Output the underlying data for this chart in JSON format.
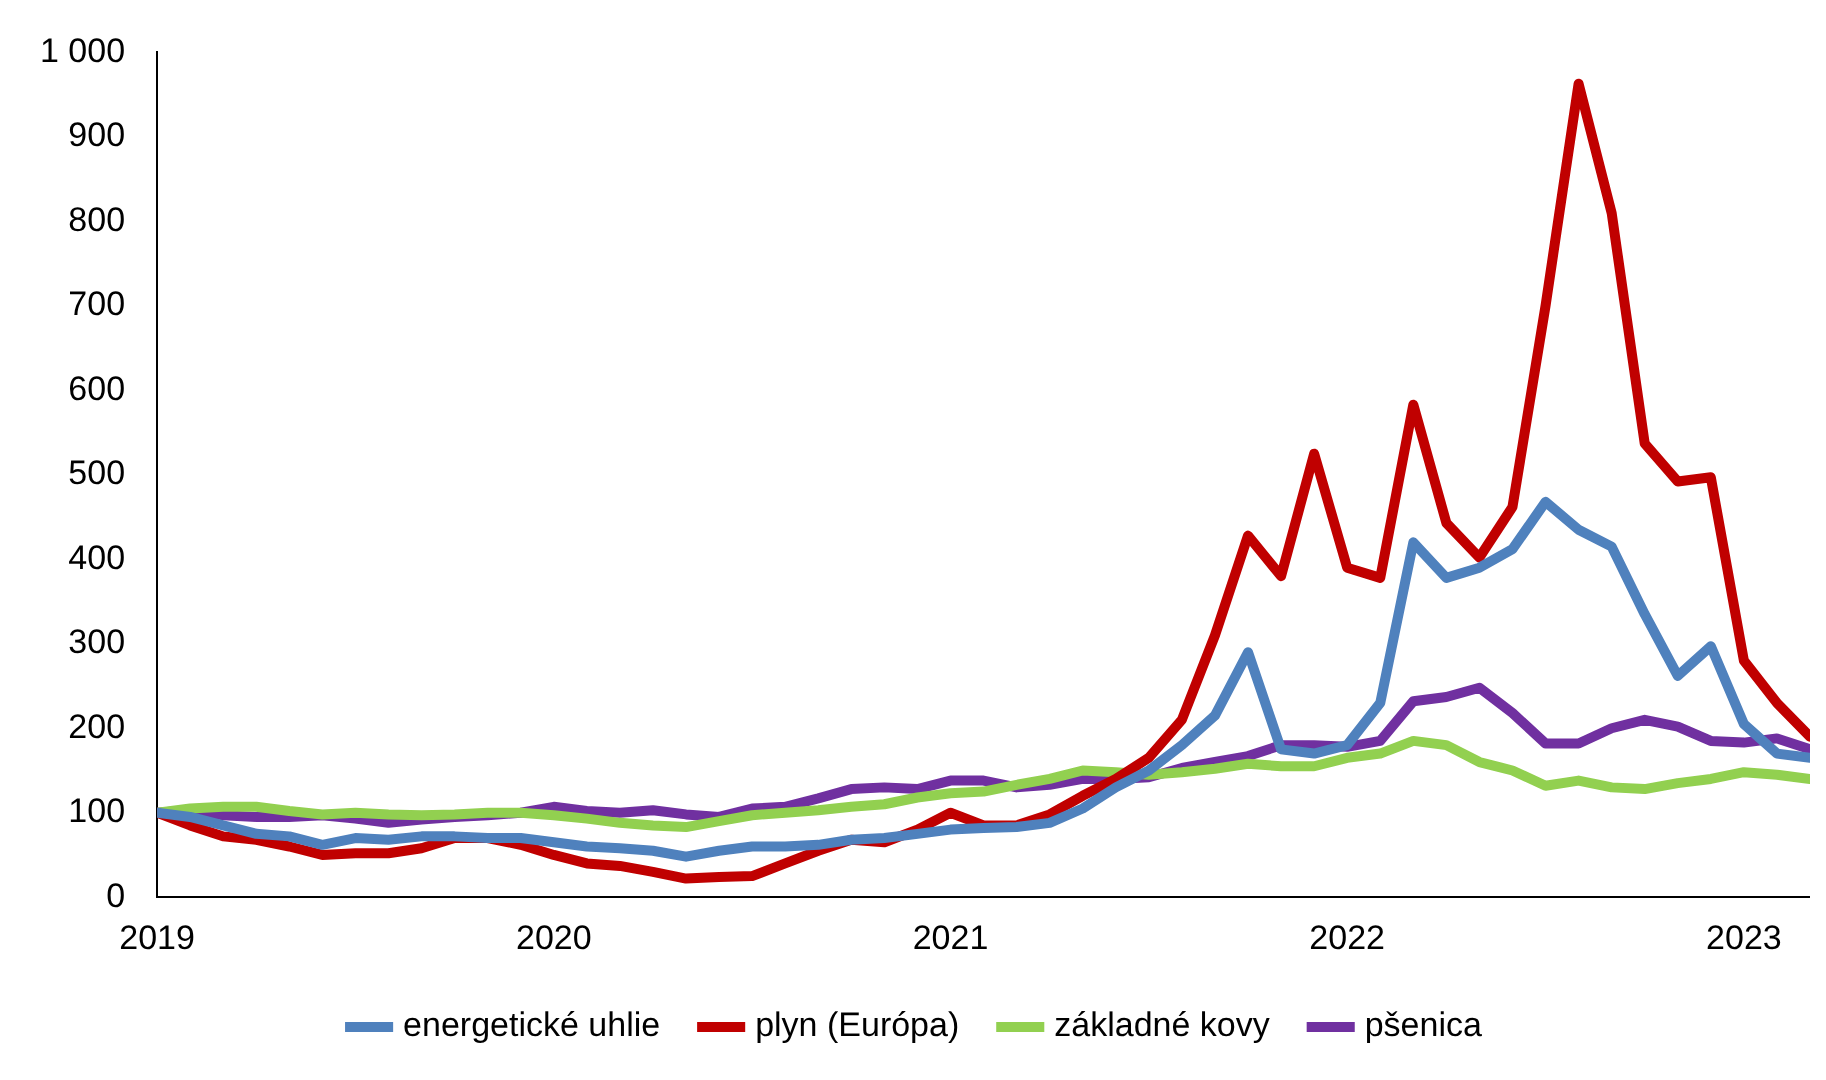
{
  "chart_data": {
    "type": "line",
    "x": [
      "2019-01",
      "2019-02",
      "2019-03",
      "2019-04",
      "2019-05",
      "2019-06",
      "2019-07",
      "2019-08",
      "2019-09",
      "2019-10",
      "2019-11",
      "2019-12",
      "2020-01",
      "2020-02",
      "2020-03",
      "2020-04",
      "2020-05",
      "2020-06",
      "2020-07",
      "2020-08",
      "2020-09",
      "2020-10",
      "2020-11",
      "2020-12",
      "2021-01",
      "2021-02",
      "2021-03",
      "2021-04",
      "2021-05",
      "2021-06",
      "2021-07",
      "2021-08",
      "2021-09",
      "2021-10",
      "2021-11",
      "2021-12",
      "2022-01",
      "2022-02",
      "2022-03",
      "2022-04",
      "2022-05",
      "2022-06",
      "2022-07",
      "2022-08",
      "2022-09",
      "2022-10",
      "2022-11",
      "2022-12",
      "2023-01",
      "2023-02",
      "2023-03"
    ],
    "series": [
      {
        "name": "energetické uhlie",
        "color": "#4f81bd",
        "values": [
          100,
          95,
          85,
          75,
          72,
          62,
          70,
          68,
          72,
          72,
          70,
          70,
          65,
          60,
          58,
          55,
          48,
          55,
          60,
          60,
          62,
          68,
          70,
          75,
          80,
          82,
          83,
          88,
          105,
          130,
          150,
          180,
          215,
          290,
          175,
          170,
          180,
          230,
          420,
          378,
          390,
          412,
          468,
          435,
          415,
          335,
          262,
          297,
          205,
          170,
          165
        ]
      },
      {
        "name": "plyn (Európa)",
        "color": "#c00000",
        "values": [
          100,
          85,
          72,
          68,
          60,
          50,
          52,
          52,
          58,
          70,
          70,
          62,
          50,
          40,
          37,
          30,
          22,
          24,
          25,
          40,
          55,
          68,
          65,
          80,
          100,
          85,
          85,
          98,
          120,
          140,
          165,
          210,
          310,
          428,
          380,
          525,
          390,
          378,
          583,
          443,
          402,
          462,
          700,
          963,
          810,
          537,
          492,
          497,
          280,
          230,
          190
        ]
      },
      {
        "name": "základné kovy",
        "color": "#92d050",
        "values": [
          100,
          105,
          107,
          107,
          102,
          98,
          100,
          98,
          97,
          98,
          100,
          100,
          97,
          93,
          88,
          85,
          83,
          90,
          97,
          100,
          103,
          107,
          110,
          118,
          123,
          125,
          133,
          140,
          150,
          148,
          145,
          148,
          152,
          158,
          155,
          155,
          165,
          170,
          185,
          180,
          160,
          150,
          132,
          138,
          130,
          128,
          135,
          140,
          148,
          145,
          140
        ]
      },
      {
        "name": "pšenica",
        "color": "#7030a0",
        "values": [
          100,
          103,
          97,
          95,
          95,
          97,
          93,
          88,
          92,
          95,
          97,
          100,
          107,
          102,
          100,
          103,
          98,
          95,
          105,
          107,
          117,
          128,
          130,
          128,
          138,
          138,
          130,
          133,
          140,
          140,
          142,
          153,
          160,
          167,
          180,
          180,
          178,
          185,
          232,
          237,
          248,
          218,
          182,
          182,
          200,
          210,
          202,
          185,
          183,
          188,
          175
        ]
      }
    ],
    "xlim": [
      "2019-01",
      "2023-03"
    ],
    "xticks": [
      "2019",
      "2020",
      "2021",
      "2022",
      "2023"
    ],
    "ylim": [
      0,
      1000
    ],
    "yticks": [
      0,
      100,
      200,
      300,
      400,
      500,
      600,
      700,
      800,
      900,
      {
        "value": 1000,
        "label": "1 000"
      }
    ],
    "grid": false,
    "legend": "bottom",
    "marker": "none",
    "line_style": "solid"
  }
}
